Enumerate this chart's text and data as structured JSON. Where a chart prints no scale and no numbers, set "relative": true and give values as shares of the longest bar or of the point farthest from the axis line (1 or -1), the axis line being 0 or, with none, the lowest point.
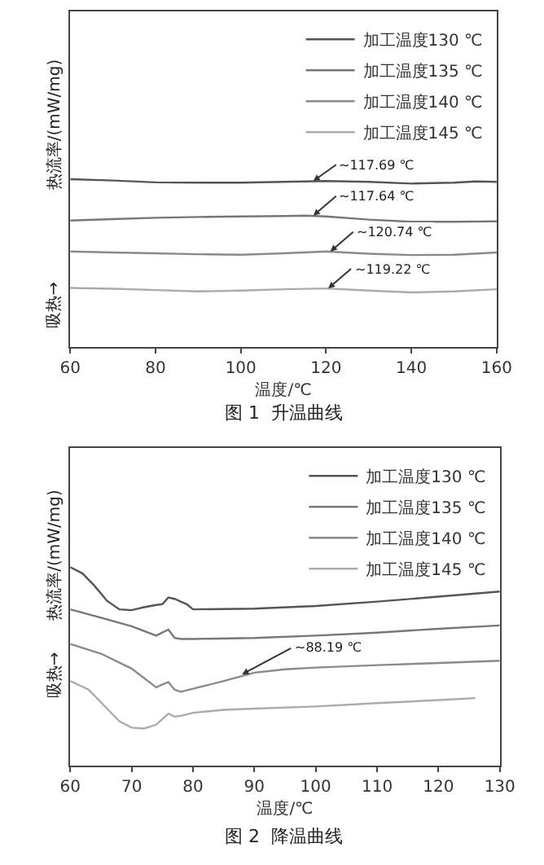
{
  "chart_data": [
    {
      "type": "line",
      "title": "图 1  升温曲线",
      "xlabel": "温度/℃",
      "ylabel": "热流率/(mW/mg)",
      "relative": true,
      "xlim": [
        60,
        160
      ],
      "xticks": [
        60,
        80,
        100,
        120,
        140,
        160
      ],
      "tick_labels": "x",
      "legend": "top right",
      "grid": false,
      "marker": "none",
      "line_style": "solid",
      "series": [
        {
          "name": "加工温度130 ℃",
          "color": "#555555",
          "x": [
            60,
            70,
            80,
            90,
            100,
            110,
            120,
            130,
            140,
            150,
            155,
            160
          ],
          "values": [
            1,
            0.992,
            0.981,
            0.979,
            0.979,
            0.984,
            0.989,
            0.984,
            0.974,
            0.979,
            0.987,
            0.984
          ]
        },
        {
          "name": "加工温度135 ℃",
          "color": "#777777",
          "x": [
            60,
            70,
            80,
            90,
            100,
            110,
            115,
            120,
            130,
            140,
            150,
            160
          ],
          "values": [
            0.754,
            0.762,
            0.77,
            0.775,
            0.778,
            0.78,
            0.783,
            0.778,
            0.759,
            0.746,
            0.746,
            0.749
          ]
        },
        {
          "name": "加工温度140 ℃",
          "color": "#8a8a8a",
          "x": [
            60,
            70,
            80,
            90,
            100,
            110,
            120,
            130,
            140,
            150,
            160
          ],
          "values": [
            0.569,
            0.563,
            0.558,
            0.553,
            0.55,
            0.558,
            0.569,
            0.556,
            0.548,
            0.55,
            0.563
          ]
        },
        {
          "name": "加工温度145 ℃",
          "color": "#ababab",
          "x": [
            60,
            70,
            80,
            90,
            100,
            110,
            120,
            130,
            140,
            150,
            160
          ],
          "values": [
            0.352,
            0.347,
            0.339,
            0.331,
            0.336,
            0.344,
            0.349,
            0.336,
            0.325,
            0.331,
            0.344
          ]
        }
      ],
      "annotations": [
        "吸热→",
        {
          "text": "~117.69 ℃",
          "x": 117,
          "y": 0.989
        },
        {
          "text": "~117.64 ℃",
          "x": 117,
          "y": 0.783
        },
        {
          "text": "~120.74 ℃",
          "x": 121,
          "y": 0.569
        },
        {
          "text": "~119.22 ℃",
          "x": 120.5,
          "y": 0.349
        }
      ]
    },
    {
      "type": "line",
      "title": "图 2  降温曲线",
      "xlabel": "温度/℃",
      "ylabel": "热流率/(mW/mg)",
      "relative": true,
      "xlim": [
        60,
        130
      ],
      "xticks": [
        60,
        70,
        80,
        90,
        100,
        110,
        120,
        130
      ],
      "tick_labels": "x",
      "legend": "top right",
      "grid": false,
      "marker": "none",
      "line_style": "solid",
      "series": [
        {
          "name": "加工温度130 ℃",
          "color": "#555555",
          "x": [
            60,
            62,
            64,
            66,
            68,
            70,
            72,
            74,
            75,
            76,
            77,
            78,
            79,
            80,
            90,
            100,
            110,
            120,
            130
          ],
          "values": [
            1,
            0.968,
            0.904,
            0.83,
            0.787,
            0.783,
            0.798,
            0.809,
            0.813,
            0.847,
            0.84,
            0.826,
            0.813,
            0.787,
            0.791,
            0.804,
            0.826,
            0.851,
            0.877
          ]
        },
        {
          "name": "加工温度135 ℃",
          "color": "#777777",
          "x": [
            60,
            65,
            70,
            74,
            75,
            76,
            77,
            78,
            80,
            90,
            100,
            110,
            120,
            130
          ],
          "values": [
            0.787,
            0.745,
            0.702,
            0.655,
            0.67,
            0.685,
            0.643,
            0.638,
            0.638,
            0.643,
            0.655,
            0.67,
            0.689,
            0.706
          ]
        },
        {
          "name": "加工温度140 ℃",
          "color": "#8a8a8a",
          "x": [
            60,
            65,
            70,
            74,
            75,
            76,
            77,
            78,
            80,
            85,
            90,
            95,
            100,
            110,
            120,
            130
          ],
          "values": [
            0.613,
            0.564,
            0.489,
            0.394,
            0.409,
            0.421,
            0.383,
            0.372,
            0.387,
            0.426,
            0.468,
            0.485,
            0.494,
            0.506,
            0.517,
            0.528
          ]
        },
        {
          "name": "加工温度145 ℃",
          "color": "#ababab",
          "x": [
            60,
            63,
            66,
            68,
            70,
            72,
            74,
            75,
            76,
            77,
            78,
            80,
            85,
            90,
            100,
            110,
            120,
            126
          ],
          "values": [
            0.426,
            0.383,
            0.287,
            0.223,
            0.191,
            0.187,
            0.206,
            0.234,
            0.262,
            0.247,
            0.251,
            0.266,
            0.281,
            0.287,
            0.298,
            0.315,
            0.33,
            0.34
          ]
        }
      ],
      "annotations": [
        "吸热→",
        {
          "text": "~88.19 ℃",
          "x": 88,
          "y": 0.46
        }
      ]
    }
  ]
}
